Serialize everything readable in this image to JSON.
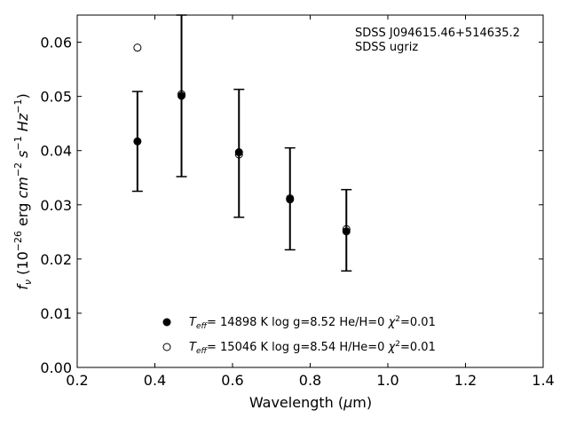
{
  "chart_data": {
    "type": "scatter",
    "title": "",
    "xlabel": "Wavelength (μm)",
    "ylabel": "fν (10⁻²⁶ erg cm⁻² s⁻¹ Hz⁻¹)",
    "xlim": [
      0.2,
      1.4
    ],
    "ylim": [
      0.0,
      0.065
    ],
    "xticks": [
      "0.2",
      "0.4",
      "0.6",
      "0.8",
      "1.0",
      "1.2",
      "1.4"
    ],
    "yticks": [
      "0.00",
      "0.01",
      "0.02",
      "0.03",
      "0.04",
      "0.05",
      "0.06"
    ],
    "annotation": [
      "SDSS J094615.46+514635.2",
      "SDSS ugriz"
    ],
    "observed": {
      "x": [
        0.3551,
        0.4686,
        0.6166,
        0.748,
        0.8932
      ],
      "y": [
        0.0417,
        0.0501,
        0.0395,
        0.0311,
        0.0253
      ],
      "yerr": [
        0.0092,
        0.0149,
        0.0118,
        0.0094,
        0.0075
      ]
    },
    "series": [
      {
        "marker": "filled-circle",
        "x": [
          0.3551,
          0.4686,
          0.6166,
          0.748,
          0.8932
        ],
        "y": [
          0.0417,
          0.0501,
          0.0397,
          0.031,
          0.0251
        ]
      },
      {
        "marker": "open-circle",
        "x": [
          0.3551,
          0.4686,
          0.6166,
          0.748,
          0.8932
        ],
        "y": [
          0.059,
          0.0504,
          0.0393,
          0.0312,
          0.0255
        ]
      }
    ],
    "legend": {
      "position": "bottom-center",
      "entries": [
        {
          "marker": "filled-circle",
          "teff": "= 14898 K  log g=8.52  He/H=0  ",
          "chi": "=0.01"
        },
        {
          "marker": "open-circle",
          "teff": "= 15046 K  log g=8.54  H/He=0  ",
          "chi": "=0.01"
        }
      ]
    },
    "grid": false
  }
}
